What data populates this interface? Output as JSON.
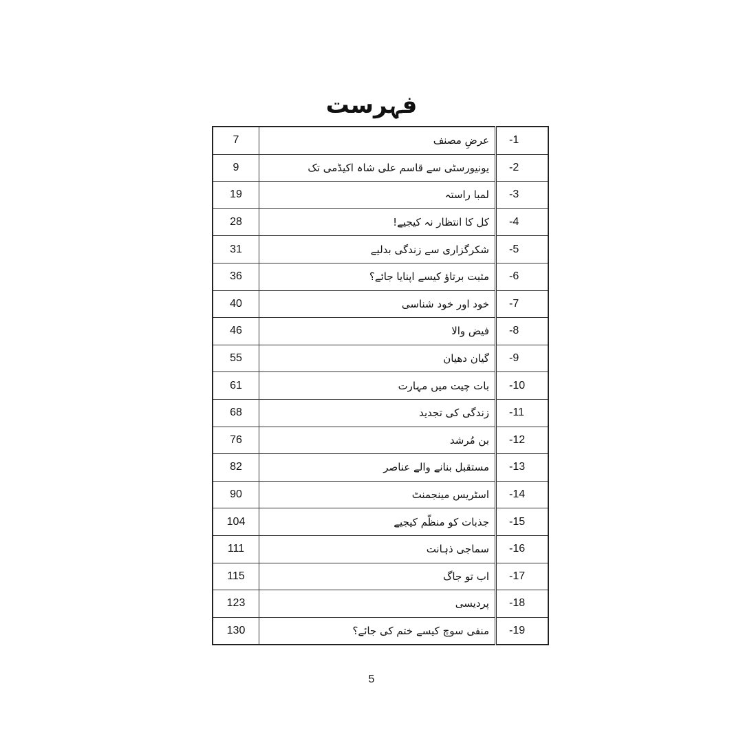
{
  "title": "فہرست",
  "entries": [
    {
      "num": "-1",
      "name": "عرضِ مصنف",
      "page": "7"
    },
    {
      "num": "-2",
      "name": "یونیورسٹی سے قاسم علی شاہ اکیڈمی تک",
      "page": "9"
    },
    {
      "num": "-3",
      "name": "لمبا راستہ",
      "page": "19"
    },
    {
      "num": "-4",
      "name": "کل کا انتظار نہ کیجیے!",
      "page": "28"
    },
    {
      "num": "-5",
      "name": "شکرگزاری سے زندگی بدلیے",
      "page": "31"
    },
    {
      "num": "-6",
      "name": "مثبت برتاؤ کیسے اپنایا جائے؟",
      "page": "36"
    },
    {
      "num": "-7",
      "name": "خود اور خود شناسی",
      "page": "40"
    },
    {
      "num": "-8",
      "name": "فیض والا",
      "page": "46"
    },
    {
      "num": "-9",
      "name": "گیان دھیان",
      "page": "55"
    },
    {
      "num": "-10",
      "name": "بات چیت میں مہارت",
      "page": "61"
    },
    {
      "num": "-11",
      "name": "زندگی کی تجدید",
      "page": "68"
    },
    {
      "num": "-12",
      "name": "بن مُرشد",
      "page": "76"
    },
    {
      "num": "-13",
      "name": "مستقبل بنانے والے عناصر",
      "page": "82"
    },
    {
      "num": "-14",
      "name": "اسٹریس مینجمنٹ",
      "page": "90"
    },
    {
      "num": "-15",
      "name": "جذبات کو منظّم کیجیے",
      "page": "104"
    },
    {
      "num": "-16",
      "name": "سماجی ذہانت",
      "page": "111"
    },
    {
      "num": "-17",
      "name": "اب تو جاگ",
      "page": "115"
    },
    {
      "num": "-18",
      "name": "پردیسی",
      "page": "123"
    },
    {
      "num": "-19",
      "name": "منفی سوچ کیسے ختم کی جائے؟",
      "page": "130"
    }
  ],
  "page_number": "5"
}
